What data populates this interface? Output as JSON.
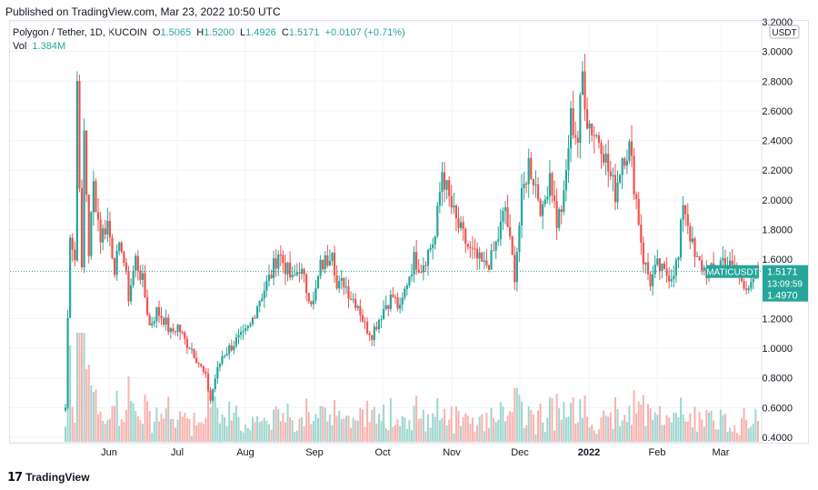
{
  "header": {
    "published": "Published on TradingView.com, Mar 23, 2022 10:50 UTC"
  },
  "legend": {
    "symbol": "Polygon / Tether, 1D, KUCOIN",
    "o_label": "O",
    "o_value": "1.5065",
    "h_label": "H",
    "h_value": "1.5200",
    "l_label": "L",
    "l_value": "1.4926",
    "c_label": "C",
    "c_value": "1.5171",
    "change": "+0.0107 (+0.71%)",
    "vol_label": "Vol",
    "vol_value": "1.384M"
  },
  "footer": {
    "logo_text": "TradingView"
  },
  "colors": {
    "up": "#26a69a",
    "down": "#ef5350",
    "vol_up": "#9fd6cf",
    "vol_down": "#f7b2b0"
  },
  "chart_data": {
    "type": "candlestick",
    "interval": "1D",
    "currency": "USDT",
    "y_ticks": [
      "0.4000",
      "0.6000",
      "0.8000",
      "1.0000",
      "1.2000",
      "1.4000",
      "1.6000",
      "1.8000",
      "2.0000",
      "2.2000",
      "2.4000",
      "2.6000",
      "2.8000",
      "3.0000",
      "3.2000"
    ],
    "ylim": [
      0.4,
      3.2
    ],
    "x_ticks": [
      "Jun",
      "Jul",
      "Aug",
      "Sep",
      "Oct",
      "Nov",
      "Dec",
      "2022",
      "Feb",
      "Mar"
    ],
    "last_price": {
      "symbol": "MATICUSDT",
      "price": "1.5171",
      "countdown": "13:09:59",
      "value": 1.5171
    },
    "marker_price": {
      "price": "1.4970",
      "value": 1.497
    },
    "path": [
      [
        0,
        0.6
      ],
      [
        2,
        1.8
      ],
      [
        4,
        1.6
      ],
      [
        5,
        2.8
      ],
      [
        7,
        1.5
      ],
      [
        8,
        2.45
      ],
      [
        10,
        1.65
      ],
      [
        12,
        2.1
      ],
      [
        15,
        1.75
      ],
      [
        18,
        1.85
      ],
      [
        21,
        1.55
      ],
      [
        24,
        1.7
      ],
      [
        27,
        1.35
      ],
      [
        30,
        1.6
      ],
      [
        33,
        1.45
      ],
      [
        36,
        1.15
      ],
      [
        39,
        1.25
      ],
      [
        42,
        1.2
      ],
      [
        45,
        1.1
      ],
      [
        48,
        1.15
      ],
      [
        51,
        1.05
      ],
      [
        54,
        1.0
      ],
      [
        57,
        0.9
      ],
      [
        60,
        0.8
      ],
      [
        62,
        0.65
      ],
      [
        64,
        0.8
      ],
      [
        67,
        0.95
      ],
      [
        70,
        1.0
      ],
      [
        73,
        1.05
      ],
      [
        76,
        1.08
      ],
      [
        79,
        1.15
      ],
      [
        82,
        1.3
      ],
      [
        85,
        1.4
      ],
      [
        88,
        1.5
      ],
      [
        91,
        1.65
      ],
      [
        94,
        1.55
      ],
      [
        97,
        1.45
      ],
      [
        100,
        1.55
      ],
      [
        103,
        1.4
      ],
      [
        106,
        1.3
      ],
      [
        109,
        1.55
      ],
      [
        112,
        1.6
      ],
      [
        114,
        1.7
      ],
      [
        116,
        1.4
      ],
      [
        119,
        1.45
      ],
      [
        122,
        1.35
      ],
      [
        125,
        1.3
      ],
      [
        128,
        1.15
      ],
      [
        131,
        1.1
      ],
      [
        134,
        1.2
      ],
      [
        137,
        1.3
      ],
      [
        140,
        1.35
      ],
      [
        143,
        1.25
      ],
      [
        146,
        1.45
      ],
      [
        149,
        1.6
      ],
      [
        152,
        1.55
      ],
      [
        155,
        1.65
      ],
      [
        158,
        1.75
      ],
      [
        161,
        2.2
      ],
      [
        164,
        2.0
      ],
      [
        167,
        1.85
      ],
      [
        170,
        1.75
      ],
      [
        173,
        1.65
      ],
      [
        176,
        1.6
      ],
      [
        179,
        1.55
      ],
      [
        182,
        1.6
      ],
      [
        185,
        1.75
      ],
      [
        188,
        1.95
      ],
      [
        190,
        1.7
      ],
      [
        192,
        1.5
      ],
      [
        195,
        2.0
      ],
      [
        198,
        2.25
      ],
      [
        201,
        2.1
      ],
      [
        204,
        1.9
      ],
      [
        207,
        2.2
      ],
      [
        210,
        1.85
      ],
      [
        213,
        2.0
      ],
      [
        216,
        2.55
      ],
      [
        219,
        2.4
      ],
      [
        221,
        2.85
      ],
      [
        223,
        2.55
      ],
      [
        226,
        2.45
      ],
      [
        229,
        2.4
      ],
      [
        232,
        2.2
      ],
      [
        235,
        2.05
      ],
      [
        238,
        2.3
      ],
      [
        241,
        2.35
      ],
      [
        244,
        2.0
      ],
      [
        247,
        1.6
      ],
      [
        250,
        1.45
      ],
      [
        253,
        1.55
      ],
      [
        256,
        1.5
      ],
      [
        259,
        1.5
      ],
      [
        262,
        1.6
      ],
      [
        264,
        2.0
      ],
      [
        266,
        1.85
      ],
      [
        269,
        1.6
      ],
      [
        272,
        1.55
      ],
      [
        275,
        1.5
      ],
      [
        278,
        1.55
      ],
      [
        281,
        1.6
      ],
      [
        284,
        1.55
      ],
      [
        287,
        1.5
      ],
      [
        290,
        1.45
      ],
      [
        293,
        1.4
      ],
      [
        296,
        1.5171
      ]
    ]
  }
}
